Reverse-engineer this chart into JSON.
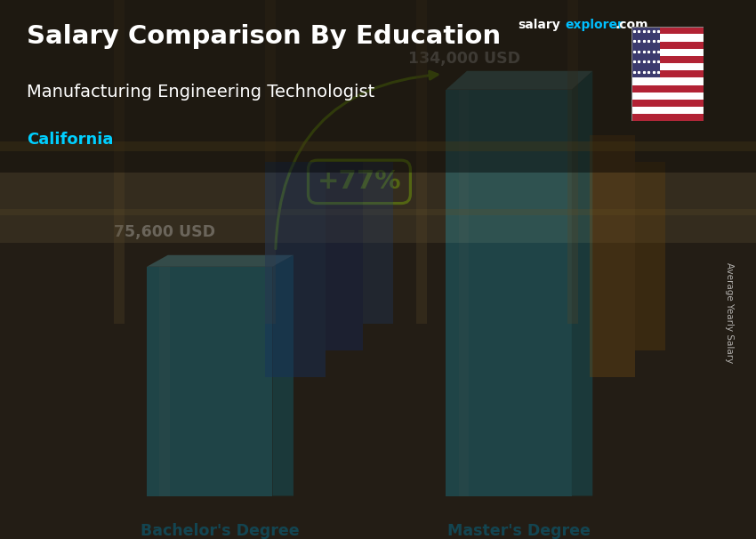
{
  "title_main": "Salary Comparison By Education",
  "title_sub": "Manufacturing Engineering Technologist",
  "title_location": "California",
  "categories": [
    "Bachelor's Degree",
    "Master's Degree"
  ],
  "values": [
    75600,
    134000
  ],
  "value_labels": [
    "75,600 USD",
    "134,000 USD"
  ],
  "pct_change": "+77%",
  "bar_color_front": "#29C7E8",
  "bar_color_top": "#7ADFF0",
  "bar_color_side": "#1A9BB5",
  "ylabel": "Average Yearly Salary",
  "title_color": "#FFFFFF",
  "subtitle_color": "#FFFFFF",
  "location_color": "#00CFFF",
  "value_label_color": "#FFFFFF",
  "xlabel_color": "#00BFFF",
  "pct_color": "#AAFF00",
  "brand_salary": "salary",
  "brand_explorer": "explorer",
  "brand_com": ".com",
  "brand_color_salary": "#FFFFFF",
  "brand_color_explorer": "#00BFFF",
  "ylim": [
    0,
    160000
  ],
  "bg_color": "#3a3228",
  "overlay_color": "#000000",
  "overlay_alpha": 0.38
}
